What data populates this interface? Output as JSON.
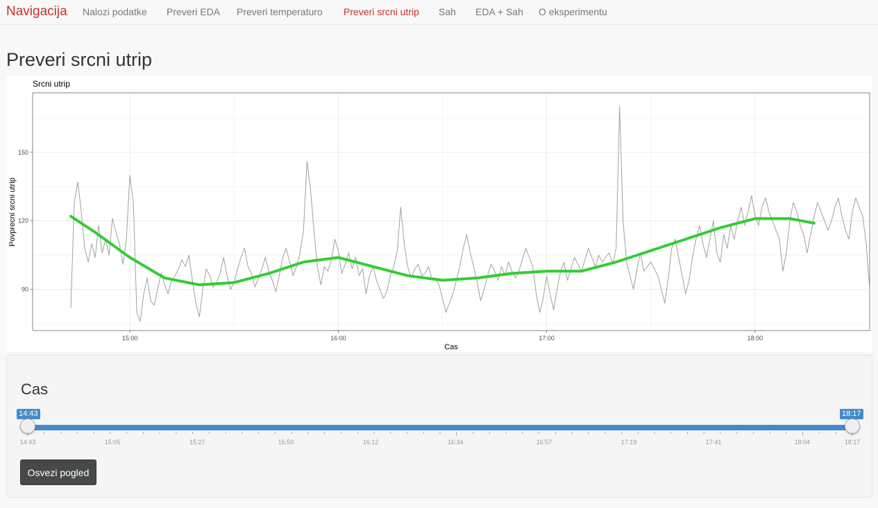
{
  "nav": {
    "brand": "Navigacija",
    "items": [
      {
        "label": "Nalozi podatke",
        "active": false
      },
      {
        "label": "Preveri EDA",
        "active": false
      },
      {
        "label": "Preveri temperaturo",
        "active": false
      },
      {
        "label": "Preveri srcni utrip",
        "active": true
      },
      {
        "label": "Sah",
        "active": false
      },
      {
        "label": "EDA + Sah",
        "active": false
      },
      {
        "label": "O eksperimentu",
        "active": false
      }
    ]
  },
  "page": {
    "title": "Preveri srcni utrip"
  },
  "chart_data": {
    "type": "line",
    "title": "Srcni utrip",
    "xlabel": "Cas",
    "ylabel": "Povprecni srcni utrip",
    "x_ticks": [
      "15:00",
      "16:00",
      "17:00",
      "18:00"
    ],
    "y_ticks": [
      90,
      120,
      150
    ],
    "xlim": [
      "14:32",
      "18:33"
    ],
    "ylim": [
      72,
      176
    ],
    "grid": true,
    "series": [
      {
        "color": "#a0a0a0",
        "points": [
          [
            "14:43",
            82
          ],
          [
            "14:44",
            128
          ],
          [
            "14:45",
            137
          ],
          [
            "14:46",
            124
          ],
          [
            "14:47",
            108
          ],
          [
            "14:48",
            102
          ],
          [
            "14:49",
            110
          ],
          [
            "14:50",
            104
          ],
          [
            "14:51",
            118
          ],
          [
            "14:52",
            106
          ],
          [
            "14:53",
            112
          ],
          [
            "14:54",
            105
          ],
          [
            "14:55",
            121
          ],
          [
            "14:56",
            115
          ],
          [
            "14:57",
            110
          ],
          [
            "14:58",
            101
          ],
          [
            "14:59",
            112
          ],
          [
            "15:00",
            140
          ],
          [
            "15:01",
            128
          ],
          [
            "15:02",
            80
          ],
          [
            "15:03",
            76
          ],
          [
            "15:04",
            88
          ],
          [
            "15:05",
            95
          ],
          [
            "15:06",
            85
          ],
          [
            "15:07",
            83
          ],
          [
            "15:08",
            90
          ],
          [
            "15:09",
            97
          ],
          [
            "15:10",
            92
          ],
          [
            "15:11",
            88
          ],
          [
            "15:12",
            94
          ],
          [
            "15:13",
            96
          ],
          [
            "15:14",
            99
          ],
          [
            "15:15",
            103
          ],
          [
            "15:16",
            100
          ],
          [
            "15:17",
            105
          ],
          [
            "15:18",
            94
          ],
          [
            "15:19",
            84
          ],
          [
            "15:20",
            78
          ],
          [
            "15:21",
            90
          ],
          [
            "15:22",
            99
          ],
          [
            "15:23",
            96
          ],
          [
            "15:24",
            91
          ],
          [
            "15:25",
            93
          ],
          [
            "15:26",
            97
          ],
          [
            "15:27",
            104
          ],
          [
            "15:28",
            96
          ],
          [
            "15:29",
            90
          ],
          [
            "15:30",
            93
          ],
          [
            "15:31",
            99
          ],
          [
            "15:32",
            104
          ],
          [
            "15:33",
            108
          ],
          [
            "15:34",
            100
          ],
          [
            "15:35",
            97
          ],
          [
            "15:36",
            91
          ],
          [
            "15:37",
            95
          ],
          [
            "15:38",
            99
          ],
          [
            "15:39",
            104
          ],
          [
            "15:40",
            98
          ],
          [
            "15:41",
            94
          ],
          [
            "15:42",
            89
          ],
          [
            "15:43",
            96
          ],
          [
            "15:44",
            104
          ],
          [
            "15:45",
            108
          ],
          [
            "15:46",
            102
          ],
          [
            "15:47",
            96
          ],
          [
            "15:48",
            100
          ],
          [
            "15:49",
            106
          ],
          [
            "15:50",
            116
          ],
          [
            "15:51",
            146
          ],
          [
            "15:52",
            134
          ],
          [
            "15:53",
            116
          ],
          [
            "15:54",
            100
          ],
          [
            "15:55",
            92
          ],
          [
            "15:56",
            100
          ],
          [
            "15:57",
            98
          ],
          [
            "15:58",
            103
          ],
          [
            "15:59",
            112
          ],
          [
            "16:00",
            107
          ],
          [
            "16:01",
            97
          ],
          [
            "16:02",
            101
          ],
          [
            "16:03",
            106
          ],
          [
            "16:04",
            99
          ],
          [
            "16:05",
            104
          ],
          [
            "16:06",
            96
          ],
          [
            "16:07",
            99
          ],
          [
            "16:08",
            88
          ],
          [
            "16:09",
            96
          ],
          [
            "16:10",
            100
          ],
          [
            "16:11",
            94
          ],
          [
            "16:12",
            90
          ],
          [
            "16:13",
            86
          ],
          [
            "16:14",
            89
          ],
          [
            "16:15",
            96
          ],
          [
            "16:16",
            100
          ],
          [
            "16:17",
            107
          ],
          [
            "16:18",
            126
          ],
          [
            "16:19",
            110
          ],
          [
            "16:20",
            100
          ],
          [
            "16:21",
            95
          ],
          [
            "16:22",
            99
          ],
          [
            "16:23",
            101
          ],
          [
            "16:24",
            96
          ],
          [
            "16:25",
            97
          ],
          [
            "16:26",
            100
          ],
          [
            "16:27",
            94
          ],
          [
            "16:28",
            95
          ],
          [
            "16:29",
            92
          ],
          [
            "16:30",
            86
          ],
          [
            "16:31",
            80
          ],
          [
            "16:32",
            84
          ],
          [
            "16:33",
            88
          ],
          [
            "16:34",
            94
          ],
          [
            "16:35",
            100
          ],
          [
            "16:36",
            108
          ],
          [
            "16:37",
            114
          ],
          [
            "16:38",
            106
          ],
          [
            "16:39",
            100
          ],
          [
            "16:40",
            93
          ],
          [
            "16:41",
            85
          ],
          [
            "16:42",
            90
          ],
          [
            "16:43",
            96
          ],
          [
            "16:44",
            101
          ],
          [
            "16:45",
            98
          ],
          [
            "16:46",
            94
          ],
          [
            "16:47",
            100
          ],
          [
            "16:48",
            96
          ],
          [
            "16:49",
            102
          ],
          [
            "16:50",
            98
          ],
          [
            "16:51",
            95
          ],
          [
            "16:52",
            98
          ],
          [
            "16:53",
            103
          ],
          [
            "16:54",
            108
          ],
          [
            "16:55",
            104
          ],
          [
            "16:56",
            100
          ],
          [
            "16:57",
            88
          ],
          [
            "16:58",
            80
          ],
          [
            "16:59",
            86
          ],
          [
            "17:00",
            96
          ],
          [
            "17:01",
            88
          ],
          [
            "17:02",
            81
          ],
          [
            "17:03",
            90
          ],
          [
            "17:04",
            98
          ],
          [
            "17:05",
            102
          ],
          [
            "17:06",
            94
          ],
          [
            "17:07",
            99
          ],
          [
            "17:08",
            104
          ],
          [
            "17:09",
            101
          ],
          [
            "17:10",
            98
          ],
          [
            "17:11",
            103
          ],
          [
            "17:12",
            108
          ],
          [
            "17:13",
            104
          ],
          [
            "17:14",
            100
          ],
          [
            "17:15",
            105
          ],
          [
            "17:16",
            102
          ],
          [
            "17:17",
            104
          ],
          [
            "17:18",
            106
          ],
          [
            "17:19",
            101
          ],
          [
            "17:20",
            108
          ],
          [
            "17:21",
            170
          ],
          [
            "17:22",
            120
          ],
          [
            "17:23",
            102
          ],
          [
            "17:24",
            96
          ],
          [
            "17:25",
            90
          ],
          [
            "17:26",
            99
          ],
          [
            "17:27",
            106
          ],
          [
            "17:28",
            98
          ],
          [
            "17:29",
            100
          ],
          [
            "17:30",
            102
          ],
          [
            "17:31",
            99
          ],
          [
            "17:32",
            96
          ],
          [
            "17:33",
            90
          ],
          [
            "17:34",
            84
          ],
          [
            "17:35",
            95
          ],
          [
            "17:36",
            108
          ],
          [
            "17:37",
            112
          ],
          [
            "17:38",
            104
          ],
          [
            "17:39",
            96
          ],
          [
            "17:40",
            88
          ],
          [
            "17:41",
            94
          ],
          [
            "17:42",
            104
          ],
          [
            "17:43",
            112
          ],
          [
            "17:44",
            118
          ],
          [
            "17:45",
            110
          ],
          [
            "17:46",
            104
          ],
          [
            "17:47",
            112
          ],
          [
            "17:48",
            120
          ],
          [
            "17:49",
            106
          ],
          [
            "17:50",
            102
          ],
          [
            "17:51",
            114
          ],
          [
            "17:52",
            108
          ],
          [
            "17:53",
            118
          ],
          [
            "17:54",
            112
          ],
          [
            "17:55",
            120
          ],
          [
            "17:56",
            126
          ],
          [
            "17:57",
            118
          ],
          [
            "17:58",
            124
          ],
          [
            "17:59",
            131
          ],
          [
            "18:00",
            122
          ],
          [
            "18:01",
            118
          ],
          [
            "18:02",
            126
          ],
          [
            "18:03",
            130
          ],
          [
            "18:04",
            124
          ],
          [
            "18:05",
            120
          ],
          [
            "18:06",
            116
          ],
          [
            "18:07",
            112
          ],
          [
            "18:08",
            98
          ],
          [
            "18:09",
            106
          ],
          [
            "18:10",
            120
          ],
          [
            "18:11",
            128
          ],
          [
            "18:12",
            124
          ],
          [
            "18:13",
            118
          ],
          [
            "18:14",
            114
          ],
          [
            "18:15",
            106
          ],
          [
            "18:16",
            114
          ],
          [
            "18:17",
            122
          ],
          [
            "18:18",
            128
          ],
          [
            "18:19",
            124
          ],
          [
            "18:20",
            120
          ],
          [
            "18:21",
            116
          ],
          [
            "18:22",
            120
          ],
          [
            "18:23",
            126
          ],
          [
            "18:24",
            130
          ],
          [
            "18:25",
            122
          ],
          [
            "18:26",
            116
          ],
          [
            "18:27",
            112
          ],
          [
            "18:28",
            124
          ],
          [
            "18:29",
            130
          ],
          [
            "18:30",
            126
          ],
          [
            "18:31",
            122
          ],
          [
            "18:32",
            110
          ],
          [
            "18:33",
            90
          ]
        ]
      },
      {
        "color": "#33cc33",
        "points": [
          [
            "14:43",
            122
          ],
          [
            "14:50",
            115
          ],
          [
            "15:00",
            104
          ],
          [
            "15:10",
            95
          ],
          [
            "15:20",
            92
          ],
          [
            "15:30",
            93
          ],
          [
            "15:40",
            97
          ],
          [
            "15:50",
            102
          ],
          [
            "16:00",
            104
          ],
          [
            "16:10",
            100
          ],
          [
            "16:20",
            96
          ],
          [
            "16:30",
            94
          ],
          [
            "16:40",
            95
          ],
          [
            "16:50",
            97
          ],
          [
            "17:00",
            98
          ],
          [
            "17:10",
            98
          ],
          [
            "17:20",
            102
          ],
          [
            "17:30",
            107
          ],
          [
            "17:40",
            112
          ],
          [
            "17:50",
            117
          ],
          [
            "18:00",
            121
          ],
          [
            "18:10",
            121
          ],
          [
            "18:17",
            119
          ]
        ]
      }
    ]
  },
  "control": {
    "title": "Cas",
    "slider": {
      "min_label": "14:43",
      "max_label": "18:17",
      "value_from": "14:43",
      "value_to": "18:17",
      "tick_labels": [
        "14:43",
        "15:05",
        "15:27",
        "15:50",
        "16:12",
        "16:34",
        "16:57",
        "17:19",
        "17:41",
        "18:04",
        "18:17"
      ]
    },
    "button_label": "Osvezi pogled"
  },
  "colors": {
    "accent": "#c7302a",
    "slider": "#428bca",
    "smooth": "#33cc33",
    "raw": "#a0a0a0"
  }
}
